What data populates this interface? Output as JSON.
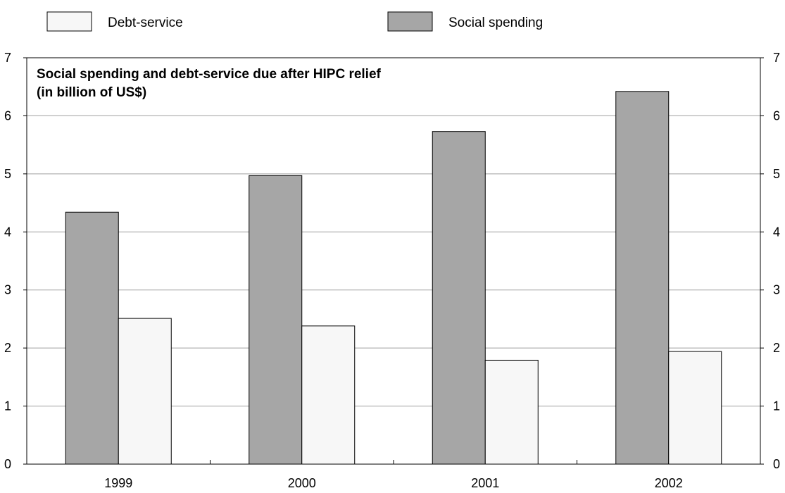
{
  "chart_data": {
    "type": "bar",
    "title": "Social spending and debt-service due after HIPC relief",
    "subtitle": "(in billion of US$)",
    "categories": [
      "1999",
      "2000",
      "2001",
      "2002"
    ],
    "series": [
      {
        "name": "Social spending",
        "values": [
          4.34,
          4.97,
          5.73,
          6.42
        ],
        "color": "#a6a6a6"
      },
      {
        "name": "Debt-service",
        "values": [
          2.51,
          2.38,
          1.79,
          1.94
        ],
        "color": "#f7f7f7"
      }
    ],
    "legend_order": [
      "Debt-service",
      "Social spending"
    ],
    "legend_position": "top",
    "ylim": [
      0,
      7
    ],
    "yticks": [
      "0",
      "1",
      "2",
      "3",
      "4",
      "5",
      "6",
      "7"
    ],
    "right_axis_ticks": [
      "0",
      "1",
      "2",
      "3",
      "4",
      "5",
      "6",
      "7"
    ],
    "grid": true,
    "xlabel": "",
    "ylabel": ""
  }
}
